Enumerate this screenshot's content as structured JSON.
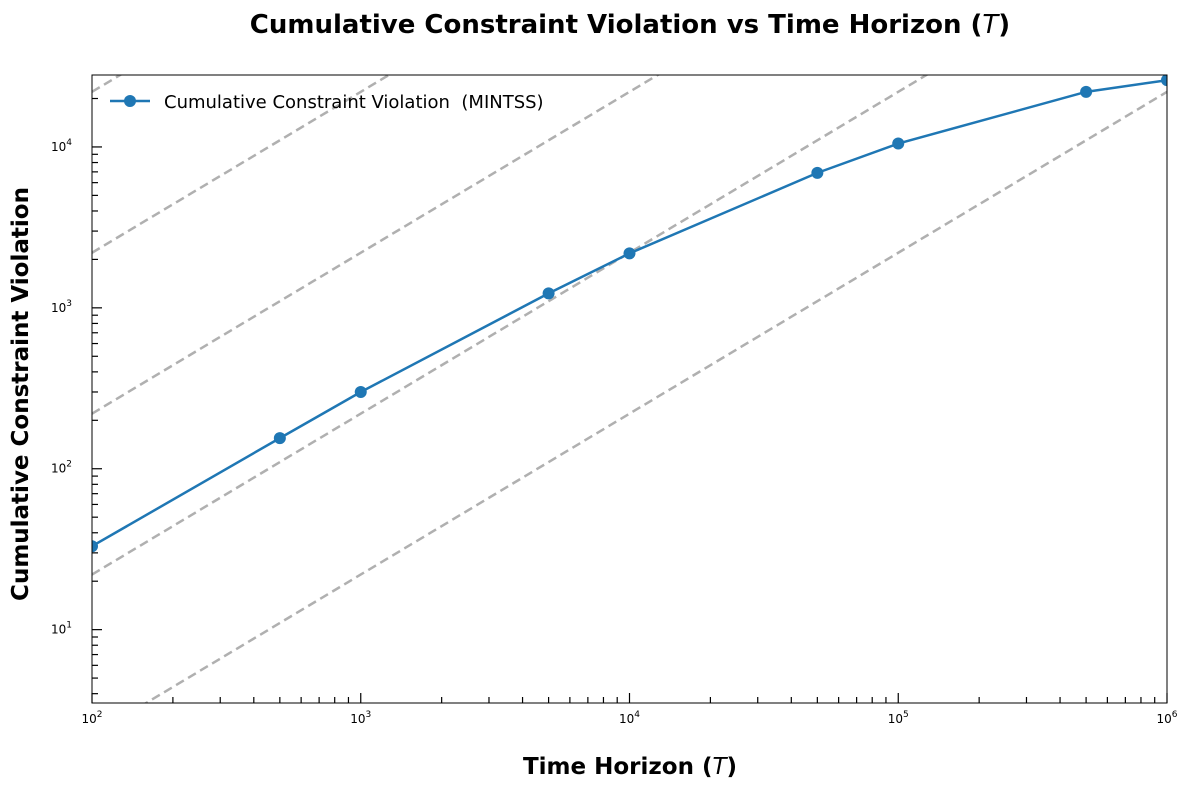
{
  "chart_data": {
    "type": "line",
    "title": "Cumulative Constraint Violation  vs Time Horizon (T)",
    "xlabel": "Time Horizon (T)",
    "ylabel": "Cumulative Constraint Violation",
    "x_scale": "log",
    "y_scale": "log",
    "xlim": [
      100,
      1000000
    ],
    "ylim": [
      3.5,
      28000
    ],
    "grid": false,
    "legend_position": "top-left",
    "x_ticks": [
      {
        "base": "10",
        "exp": "2",
        "value": 100
      },
      {
        "base": "10",
        "exp": "3",
        "value": 1000
      },
      {
        "base": "10",
        "exp": "4",
        "value": 10000
      },
      {
        "base": "10",
        "exp": "5",
        "value": 100000
      },
      {
        "base": "10",
        "exp": "6",
        "value": 1000000
      }
    ],
    "y_ticks": [
      {
        "base": "10",
        "exp": "1",
        "value": 10
      },
      {
        "base": "10",
        "exp": "2",
        "value": 100
      },
      {
        "base": "10",
        "exp": "3",
        "value": 1000
      },
      {
        "base": "10",
        "exp": "4",
        "value": 10000
      }
    ],
    "series": [
      {
        "name": "Cumulative Constraint Violation  (MINTSS)",
        "color": "#1f77b4",
        "x": [
          100,
          500,
          1000,
          5000,
          10000,
          50000,
          100000,
          500000,
          1000000
        ],
        "y": [
          33,
          155,
          300,
          1230,
          2180,
          6900,
          10500,
          22000,
          26000
        ]
      }
    ],
    "reference_lines": {
      "style": "dashed",
      "color": "#b0b0b0",
      "slope": 1,
      "values_at_x100": [
        2.2,
        22,
        220,
        2200,
        22000
      ]
    }
  }
}
